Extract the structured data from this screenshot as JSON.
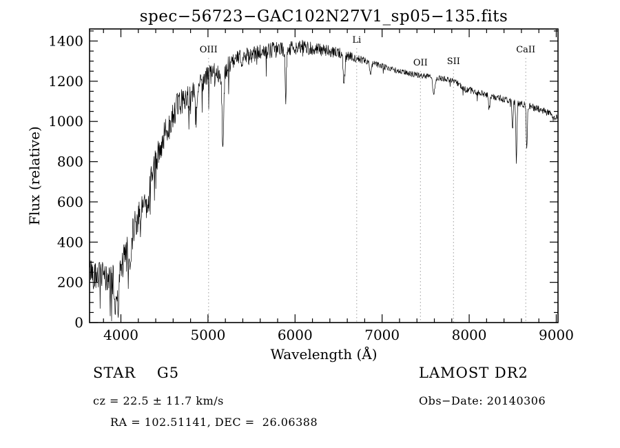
{
  "chart_data": {
    "type": "line",
    "title": "spec−56723−GAC102N27V1_sp05−135.fits",
    "xlabel": "Wavelength (Å)",
    "ylabel": "Flux (relative)",
    "xlim": [
      3640,
      9020
    ],
    "ylim": [
      0,
      1460
    ],
    "xticks": [
      4000,
      5000,
      6000,
      7000,
      8000,
      9000
    ],
    "yticks": [
      0,
      200,
      400,
      600,
      800,
      1000,
      1200,
      1400
    ],
    "x_minor_step": 200,
    "y_minor_step": 50,
    "grid": false,
    "legend": "none",
    "spectral_lines": [
      {
        "label": "OIII",
        "wavelength": 5007
      },
      {
        "label": "Li",
        "wavelength": 6708
      },
      {
        "label": "OII",
        "wavelength": 7440
      },
      {
        "label": "SII",
        "wavelength": 7820
      },
      {
        "label": "CaII",
        "wavelength": 8650
      }
    ],
    "spectrum": {
      "wavelength_start": 3645,
      "wavelength_end": 9015,
      "step": 4,
      "continuum_anchors": [
        [
          3645,
          260
        ],
        [
          3750,
          235
        ],
        [
          3850,
          215
        ],
        [
          3950,
          215
        ],
        [
          4050,
          330
        ],
        [
          4150,
          470
        ],
        [
          4250,
          590
        ],
        [
          4350,
          720
        ],
        [
          4450,
          870
        ],
        [
          4550,
          990
        ],
        [
          4650,
          1080
        ],
        [
          4750,
          1120
        ],
        [
          4850,
          1150
        ],
        [
          4950,
          1210
        ],
        [
          5050,
          1235
        ],
        [
          5150,
          1245
        ],
        [
          5250,
          1280
        ],
        [
          5350,
          1310
        ],
        [
          5500,
          1330
        ],
        [
          5700,
          1350
        ],
        [
          5900,
          1365
        ],
        [
          6100,
          1370
        ],
        [
          6300,
          1355
        ],
        [
          6500,
          1340
        ],
        [
          6700,
          1315
        ],
        [
          6900,
          1290
        ],
        [
          7100,
          1260
        ],
        [
          7300,
          1240
        ],
        [
          7500,
          1225
        ],
        [
          7700,
          1215
        ],
        [
          7850,
          1195
        ],
        [
          7950,
          1160
        ],
        [
          8100,
          1145
        ],
        [
          8300,
          1120
        ],
        [
          8500,
          1100
        ],
        [
          8700,
          1075
        ],
        [
          8900,
          1045
        ],
        [
          9015,
          1015
        ]
      ],
      "noise_anchors": [
        [
          3645,
          70
        ],
        [
          4000,
          80
        ],
        [
          4500,
          70
        ],
        [
          5000,
          55
        ],
        [
          5400,
          45
        ],
        [
          6000,
          38
        ],
        [
          6500,
          28
        ],
        [
          6900,
          16
        ],
        [
          7500,
          13
        ],
        [
          8000,
          16
        ],
        [
          9015,
          18
        ]
      ],
      "absorption_dips": [
        [
          3935,
          150,
          10
        ],
        [
          3970,
          140,
          10
        ],
        [
          4102,
          140,
          12
        ],
        [
          4227,
          110,
          8
        ],
        [
          4305,
          110,
          15
        ],
        [
          4861,
          140,
          10
        ],
        [
          5172,
          420,
          9
        ],
        [
          5893,
          260,
          7
        ],
        [
          6563,
          150,
          9
        ],
        [
          6870,
          60,
          10
        ],
        [
          7594,
          85,
          13
        ],
        [
          8230,
          70,
          8
        ],
        [
          8498,
          150,
          6
        ],
        [
          8542,
          300,
          6
        ],
        [
          8662,
          230,
          6
        ]
      ],
      "seed": 42,
      "spike_probability_blue": 0.06,
      "spike_probability_red": 0.02,
      "blue_red_boundary": 5600
    }
  },
  "footer": {
    "object_class": "STAR    G5",
    "survey": "LAMOST DR2",
    "cz": "cz = 22.5 ± 11.7 km/s",
    "obs_date": "Obs−Date: 20140306",
    "radec": "RA = 102.51141, DEC =  26.06388"
  }
}
